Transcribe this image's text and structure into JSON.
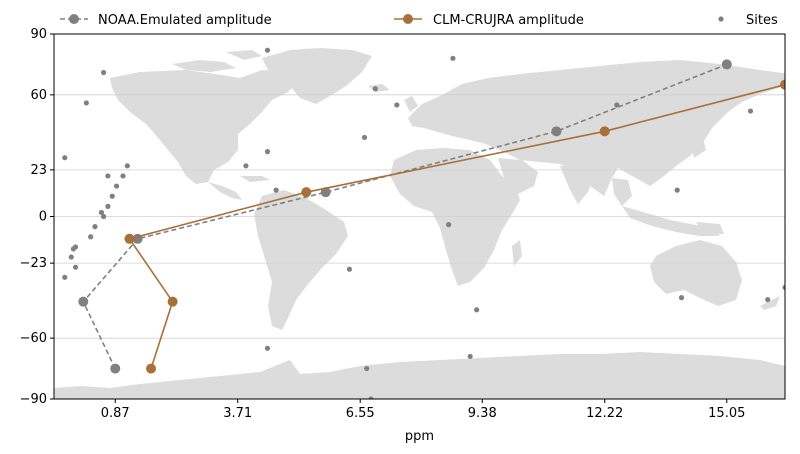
{
  "chart_data": {
    "type": "line",
    "title": "",
    "xlabel": "ppm",
    "ylabel": "",
    "xlim": [
      -0.55,
      16.4
    ],
    "ylim": [
      -90,
      90
    ],
    "x_ticks": [
      0.87,
      3.71,
      6.55,
      9.38,
      12.22,
      15.05
    ],
    "x_tick_labels": [
      "0.87",
      "3.71",
      "6.55",
      "9.38",
      "12.22",
      "15.05"
    ],
    "y_ticks": [
      90,
      60,
      23,
      0,
      -23,
      -60,
      -90
    ],
    "y_tick_labels": [
      "90",
      "60",
      "23",
      "0",
      "−23",
      "−60",
      "−90"
    ],
    "grid": "horizontal",
    "legend_position": "top",
    "background": "world-map",
    "series": [
      {
        "name": "NOAA.Emulated amplitude",
        "color": "#808080",
        "line_style": "dashed",
        "points": [
          {
            "x": 0.87,
            "y": -75
          },
          {
            "x": 0.13,
            "y": -42
          },
          {
            "x": 1.39,
            "y": -11
          },
          {
            "x": 5.75,
            "y": 12
          },
          {
            "x": 11.1,
            "y": 42
          },
          {
            "x": 15.05,
            "y": 75
          }
        ]
      },
      {
        "name": "CLM-CRUJRA amplitude",
        "color": "#a8703a",
        "line_style": "solid",
        "points": [
          {
            "x": 1.7,
            "y": -75
          },
          {
            "x": 2.2,
            "y": -42
          },
          {
            "x": 1.2,
            "y": -11
          },
          {
            "x": 5.3,
            "y": 12
          },
          {
            "x": 12.22,
            "y": 42
          },
          {
            "x": 16.4,
            "y": 65
          }
        ]
      },
      {
        "name": "Sites",
        "color": "#808080",
        "marker": "dot",
        "points": [
          [
            4.4,
            82
          ],
          [
            8.7,
            78
          ],
          [
            0.6,
            71
          ],
          [
            6.9,
            63
          ],
          [
            7.4,
            55
          ],
          [
            0.2,
            56
          ],
          [
            12.5,
            55
          ],
          [
            6.65,
            39
          ],
          [
            3.9,
            25
          ],
          [
            4.4,
            32
          ],
          [
            -0.3,
            29
          ],
          [
            1.15,
            25
          ],
          [
            0.7,
            20
          ],
          [
            1.05,
            20
          ],
          [
            0.9,
            15
          ],
          [
            4.6,
            13
          ],
          [
            0.8,
            10
          ],
          [
            0.7,
            5
          ],
          [
            0.55,
            2
          ],
          [
            0.6,
            0
          ],
          [
            0.4,
            -5
          ],
          [
            0.3,
            -10
          ],
          [
            8.6,
            -4
          ],
          [
            -0.05,
            -15
          ],
          [
            -0.1,
            -16
          ],
          [
            -0.15,
            -20
          ],
          [
            -0.05,
            -25
          ],
          [
            -0.3,
            -30
          ],
          [
            6.3,
            -26
          ],
          [
            9.25,
            -46
          ],
          [
            16.0,
            -41
          ],
          [
            16.4,
            -35
          ],
          [
            14.0,
            -40
          ],
          [
            13.9,
            13
          ],
          [
            15.6,
            52
          ],
          [
            4.4,
            -65
          ],
          [
            9.1,
            -69
          ],
          [
            6.7,
            -75
          ],
          [
            6.8,
            -90
          ]
        ]
      }
    ]
  }
}
